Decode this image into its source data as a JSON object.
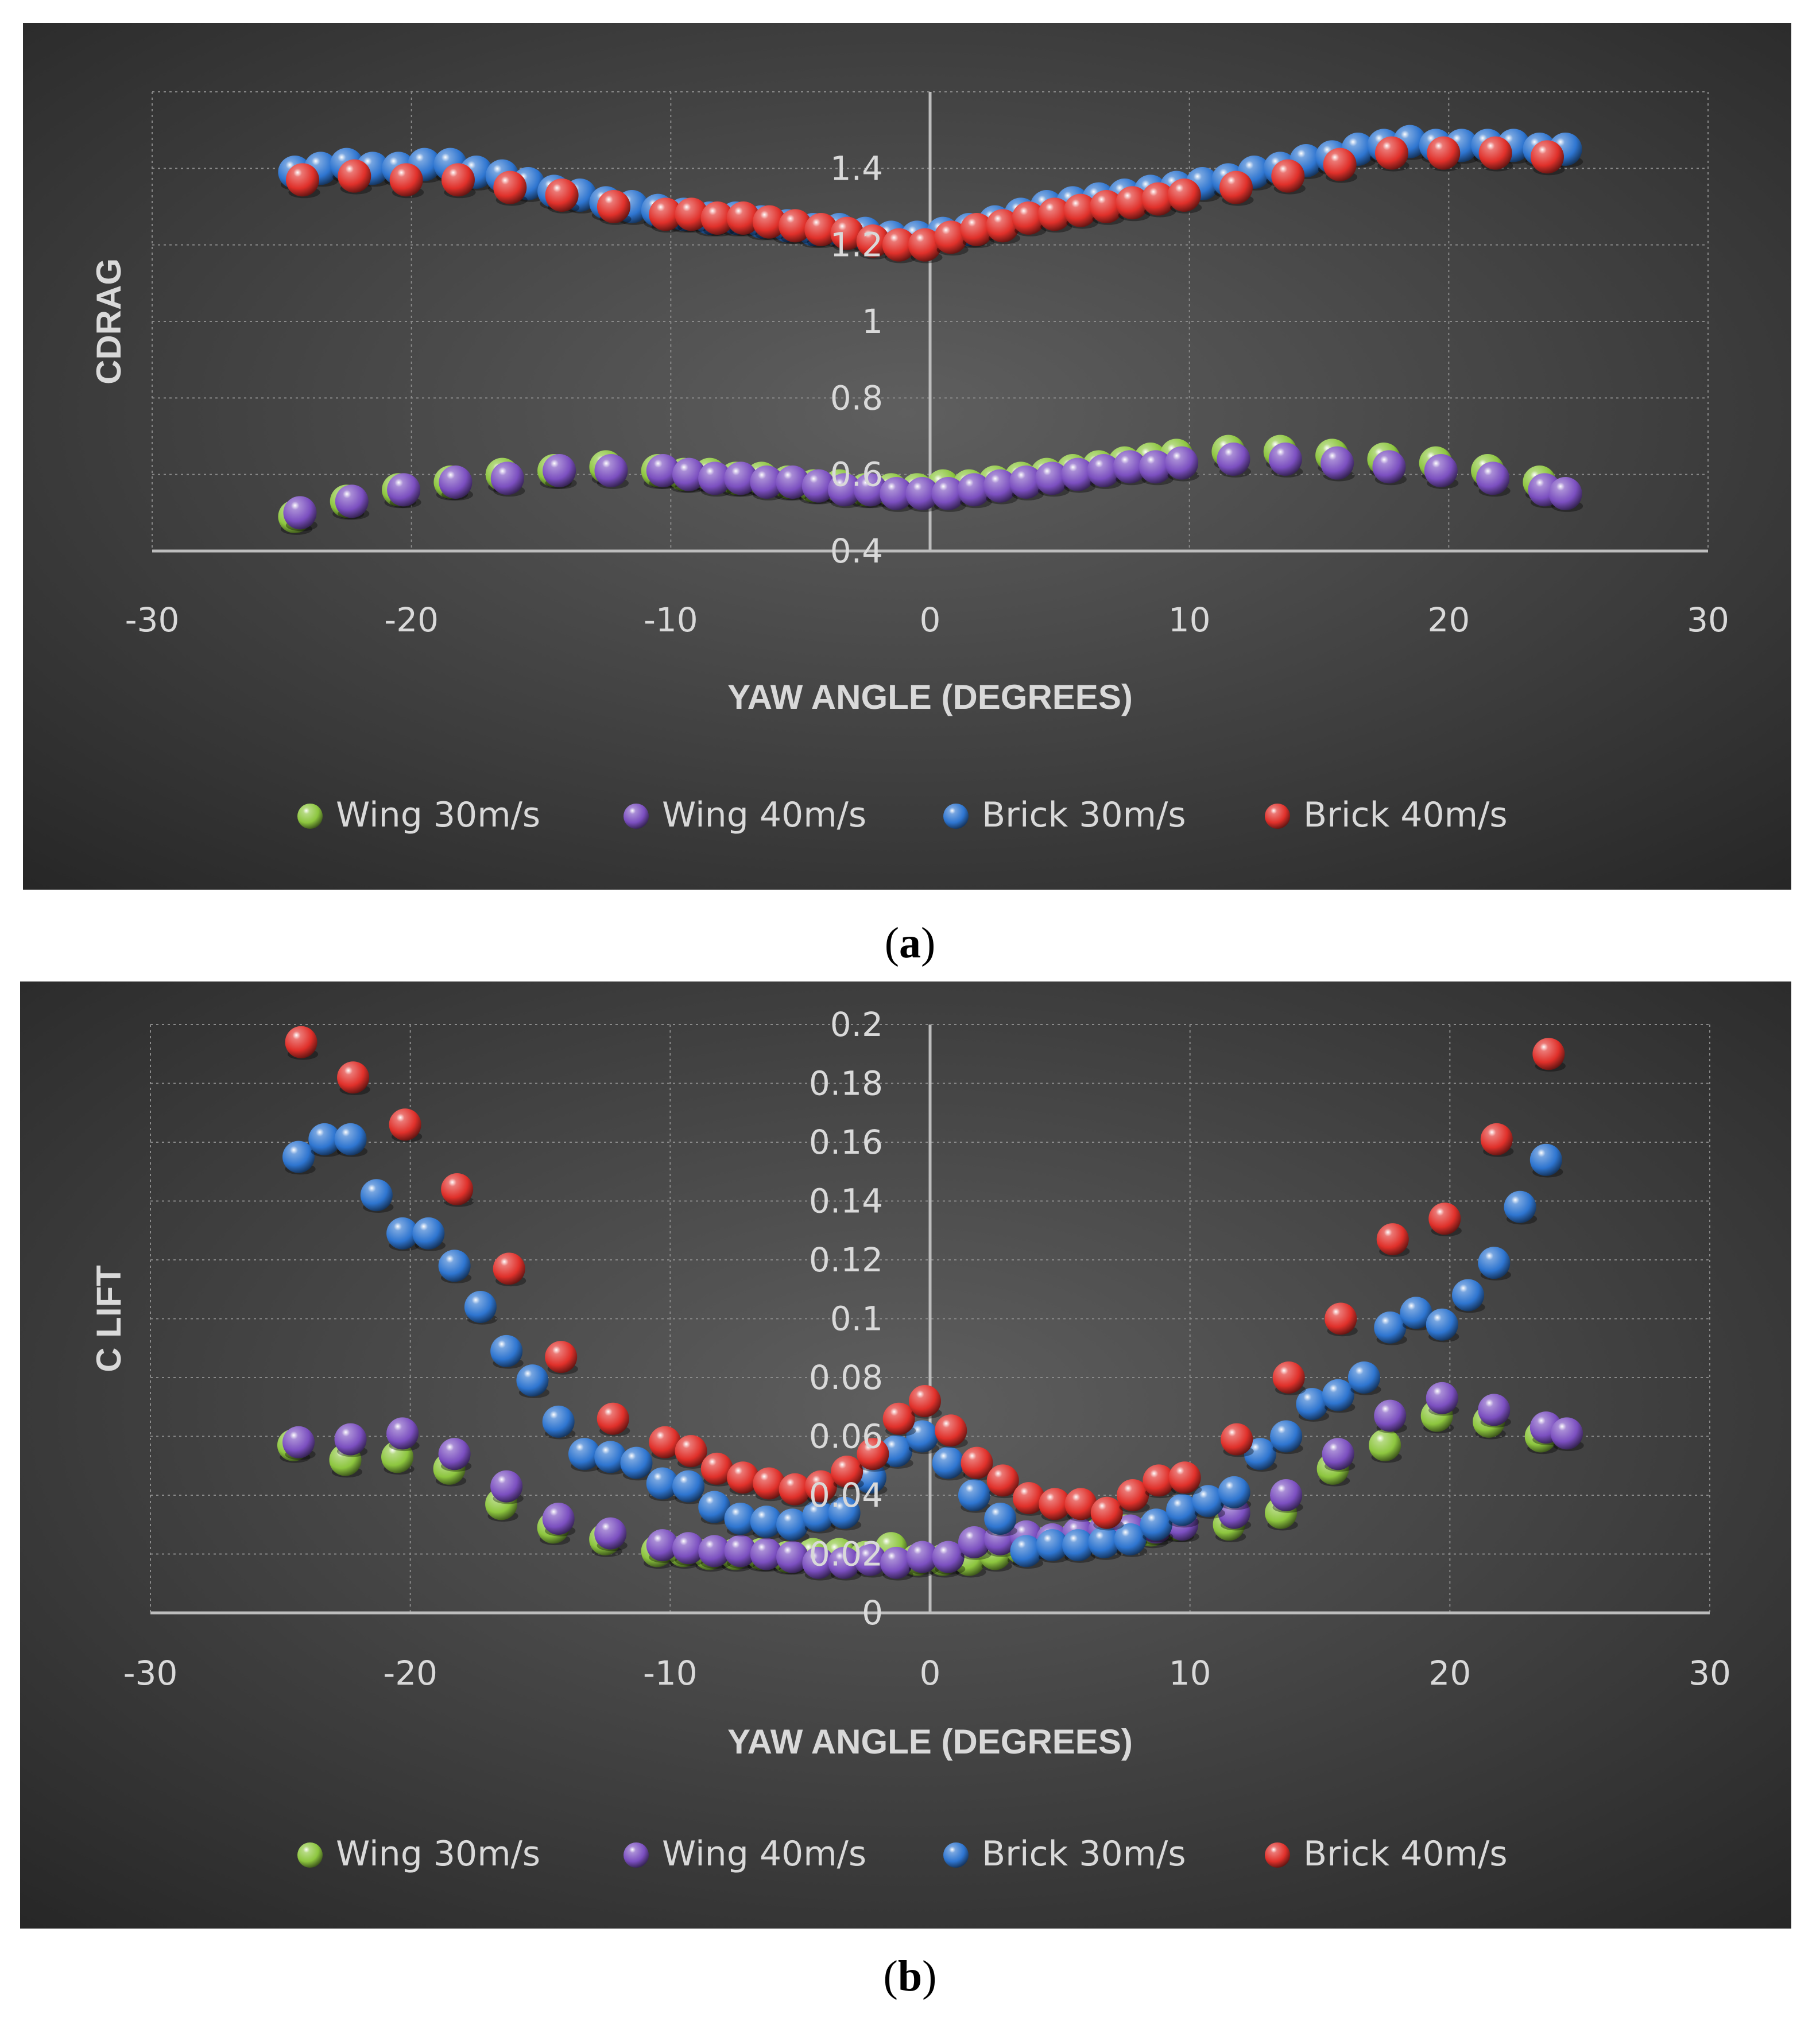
{
  "panels": [
    {
      "caption_letter": "a",
      "chart_data": {
        "type": "scatter",
        "title": "",
        "xlabel": "YAW ANGLE (DEGREES)",
        "ylabel": "CDRAG",
        "xlim": [
          -30,
          30
        ],
        "ylim": [
          0.4,
          1.6
        ],
        "x_ticks": [
          -30,
          -20,
          -10,
          0,
          10,
          20,
          30
        ],
        "y_ticks": [
          0.4,
          0.6,
          0.8,
          1,
          1.2,
          1.4
        ],
        "y_tick_labels": [
          "0.4",
          "0.6",
          "0.8",
          "1",
          "1.2",
          "1.4"
        ],
        "x_tick_labels": [
          "-30",
          "-20",
          "-10",
          "0",
          "10",
          "20",
          "30"
        ],
        "grid": true,
        "legend_position": "bottom",
        "series": [
          {
            "name": "Wing 30m/s",
            "color": "#8dc63f",
            "x": [
              -24.5,
              -22.5,
              -20.5,
              -18.5,
              -16.5,
              -14.5,
              -12.5,
              -10.5,
              -9.5,
              -8.5,
              -7.5,
              -6.5,
              -5.5,
              -4.5,
              -3.5,
              -2.5,
              -1.5,
              -0.5,
              0.5,
              1.5,
              2.5,
              3.5,
              4.5,
              5.5,
              6.5,
              7.5,
              8.5,
              9.5,
              11.5,
              13.5,
              15.5,
              17.5,
              19.5,
              21.5,
              23.5
            ],
            "y": [
              0.49,
              0.53,
              0.56,
              0.58,
              0.6,
              0.61,
              0.62,
              0.61,
              0.6,
              0.6,
              0.59,
              0.59,
              0.58,
              0.57,
              0.57,
              0.56,
              0.56,
              0.56,
              0.57,
              0.57,
              0.58,
              0.59,
              0.6,
              0.61,
              0.62,
              0.63,
              0.64,
              0.65,
              0.66,
              0.66,
              0.65,
              0.64,
              0.63,
              0.61,
              0.58
            ]
          },
          {
            "name": "Wing 40m/s",
            "color": "#7b4fc0",
            "x": [
              -24.3,
              -22.3,
              -20.3,
              -18.3,
              -16.3,
              -14.3,
              -12.3,
              -10.3,
              -9.3,
              -8.3,
              -7.3,
              -6.3,
              -5.3,
              -4.3,
              -3.3,
              -2.3,
              -1.3,
              -0.3,
              0.7,
              1.7,
              2.7,
              3.7,
              4.7,
              5.7,
              6.7,
              7.7,
              8.7,
              9.7,
              11.7,
              13.7,
              15.7,
              17.7,
              19.7,
              21.7,
              23.7,
              24.5
            ],
            "y": [
              0.5,
              0.53,
              0.56,
              0.58,
              0.59,
              0.61,
              0.61,
              0.61,
              0.6,
              0.59,
              0.59,
              0.58,
              0.58,
              0.57,
              0.56,
              0.56,
              0.55,
              0.55,
              0.55,
              0.56,
              0.57,
              0.58,
              0.59,
              0.6,
              0.61,
              0.62,
              0.62,
              0.63,
              0.64,
              0.64,
              0.63,
              0.62,
              0.61,
              0.59,
              0.56,
              0.55
            ]
          },
          {
            "name": "Brick 30m/s",
            "color": "#2e75d0",
            "x": [
              -24.5,
              -23.5,
              -22.5,
              -21.5,
              -20.5,
              -19.5,
              -18.5,
              -17.5,
              -16.5,
              -15.5,
              -14.5,
              -13.5,
              -12.5,
              -11.5,
              -10.5,
              -9.5,
              -8.5,
              -7.5,
              -6.5,
              -5.5,
              -4.5,
              -3.5,
              -2.5,
              -1.5,
              -0.5,
              0.5,
              1.5,
              2.5,
              3.5,
              4.5,
              5.5,
              6.5,
              7.5,
              8.5,
              9.5,
              10.5,
              11.5,
              12.5,
              13.5,
              14.5,
              15.5,
              16.5,
              17.5,
              18.5,
              19.5,
              20.5,
              21.5,
              22.5,
              23.5,
              24.5
            ],
            "y": [
              1.39,
              1.4,
              1.41,
              1.4,
              1.4,
              1.41,
              1.41,
              1.39,
              1.38,
              1.36,
              1.34,
              1.33,
              1.31,
              1.3,
              1.29,
              1.28,
              1.27,
              1.27,
              1.26,
              1.25,
              1.24,
              1.24,
              1.23,
              1.22,
              1.22,
              1.23,
              1.24,
              1.26,
              1.28,
              1.3,
              1.31,
              1.32,
              1.33,
              1.34,
              1.35,
              1.36,
              1.37,
              1.39,
              1.4,
              1.42,
              1.43,
              1.45,
              1.46,
              1.47,
              1.46,
              1.46,
              1.46,
              1.46,
              1.45,
              1.45
            ]
          },
          {
            "name": "Brick 40m/s",
            "color": "#e0302a",
            "x": [
              -24.2,
              -22.2,
              -20.2,
              -18.2,
              -16.2,
              -14.2,
              -12.2,
              -10.2,
              -9.2,
              -8.2,
              -7.2,
              -6.2,
              -5.2,
              -4.2,
              -3.2,
              -2.2,
              -1.2,
              -0.2,
              0.8,
              1.8,
              2.8,
              3.8,
              4.8,
              5.8,
              6.8,
              7.8,
              8.8,
              9.8,
              11.8,
              13.8,
              15.8,
              17.8,
              19.8,
              21.8,
              23.8
            ],
            "y": [
              1.37,
              1.38,
              1.37,
              1.37,
              1.35,
              1.33,
              1.3,
              1.28,
              1.28,
              1.27,
              1.27,
              1.26,
              1.25,
              1.24,
              1.23,
              1.21,
              1.2,
              1.2,
              1.22,
              1.24,
              1.25,
              1.27,
              1.28,
              1.29,
              1.3,
              1.31,
              1.32,
              1.33,
              1.35,
              1.38,
              1.41,
              1.44,
              1.44,
              1.44,
              1.43
            ]
          }
        ]
      }
    },
    {
      "caption_letter": "b",
      "chart_data": {
        "type": "scatter",
        "title": "",
        "xlabel": "YAW ANGLE (DEGREES)",
        "ylabel": "C LIFT",
        "xlim": [
          -30,
          30
        ],
        "ylim": [
          0,
          0.2
        ],
        "x_ticks": [
          -30,
          -20,
          -10,
          0,
          10,
          20,
          30
        ],
        "y_ticks": [
          0,
          0.02,
          0.04,
          0.06,
          0.08,
          0.1,
          0.12,
          0.14,
          0.16,
          0.18,
          0.2
        ],
        "y_tick_labels": [
          "0",
          "0.02",
          "0.04",
          "0.06",
          "0.08",
          "0.1",
          "0.12",
          "0.14",
          "0.16",
          "0.18",
          "0.2"
        ],
        "x_tick_labels": [
          "-30",
          "-20",
          "-10",
          "0",
          "10",
          "20",
          "30"
        ],
        "grid": true,
        "legend_position": "bottom",
        "series": [
          {
            "name": "Wing 30m/s",
            "color": "#8dc63f",
            "x": [
              -24.5,
              -22.5,
              -20.5,
              -18.5,
              -16.5,
              -14.5,
              -12.5,
              -10.5,
              -9.5,
              -8.5,
              -7.5,
              -6.5,
              -5.5,
              -4.5,
              -3.5,
              -2.5,
              -1.5,
              -0.5,
              0.5,
              1.5,
              2.5,
              3.5,
              4.5,
              5.5,
              6.5,
              7.5,
              8.5,
              9.5,
              11.5,
              13.5,
              15.5,
              17.5,
              19.5,
              21.5,
              23.5
            ],
            "y": [
              0.057,
              0.052,
              0.053,
              0.049,
              0.037,
              0.029,
              0.025,
              0.021,
              0.021,
              0.02,
              0.02,
              0.02,
              0.019,
              0.02,
              0.02,
              0.019,
              0.022,
              0.018,
              0.018,
              0.018,
              0.02,
              0.022,
              0.024,
              0.025,
              0.027,
              0.028,
              0.028,
              0.03,
              0.03,
              0.034,
              0.049,
              0.057,
              0.067,
              0.065,
              0.06
            ]
          },
          {
            "name": "Wing 40m/s",
            "color": "#7b4fc0",
            "x": [
              -24.3,
              -22.3,
              -20.3,
              -18.3,
              -16.3,
              -14.3,
              -12.3,
              -10.3,
              -9.3,
              -8.3,
              -7.3,
              -6.3,
              -5.3,
              -4.3,
              -3.3,
              -2.3,
              -1.3,
              -0.3,
              0.7,
              1.7,
              2.7,
              3.7,
              4.7,
              5.7,
              6.7,
              7.7,
              8.7,
              9.7,
              11.7,
              13.7,
              15.7,
              17.7,
              19.7,
              21.7,
              23.7,
              24.5
            ],
            "y": [
              0.058,
              0.059,
              0.061,
              0.054,
              0.043,
              0.032,
              0.027,
              0.023,
              0.022,
              0.021,
              0.021,
              0.02,
              0.019,
              0.017,
              0.017,
              0.018,
              0.017,
              0.019,
              0.019,
              0.024,
              0.025,
              0.026,
              0.025,
              0.027,
              0.028,
              0.028,
              0.029,
              0.03,
              0.034,
              0.04,
              0.054,
              0.067,
              0.073,
              0.069,
              0.063,
              0.061
            ]
          },
          {
            "name": "Brick 30m/s",
            "color": "#2e75d0",
            "x": [
              -24.3,
              -23.3,
              -22.3,
              -21.3,
              -20.3,
              -19.3,
              -18.3,
              -17.3,
              -16.3,
              -15.3,
              -14.3,
              -13.3,
              -12.3,
              -11.3,
              -10.3,
              -9.3,
              -8.3,
              -7.3,
              -6.3,
              -5.3,
              -4.3,
              -3.3,
              -2.3,
              -1.3,
              -0.3,
              0.7,
              1.7,
              2.7,
              3.7,
              4.7,
              5.7,
              6.7,
              7.7,
              8.7,
              9.7,
              10.7,
              11.7,
              12.7,
              13.7,
              14.7,
              15.7,
              16.7,
              17.7,
              18.7,
              19.7,
              20.7,
              21.7,
              22.7,
              23.7
            ],
            "y": [
              0.155,
              0.161,
              0.161,
              0.142,
              0.129,
              0.129,
              0.118,
              0.104,
              0.089,
              0.079,
              0.065,
              0.054,
              0.053,
              0.051,
              0.044,
              0.043,
              0.036,
              0.032,
              0.031,
              0.03,
              0.033,
              0.034,
              0.046,
              0.055,
              0.06,
              0.051,
              0.04,
              0.032,
              0.021,
              0.023,
              0.023,
              0.024,
              0.025,
              0.03,
              0.035,
              0.038,
              0.041,
              0.054,
              0.06,
              0.071,
              0.074,
              0.08,
              0.097,
              0.102,
              0.098,
              0.108,
              0.119,
              0.138,
              0.154
            ]
          },
          {
            "name": "Brick 40m/s",
            "color": "#e0302a",
            "x": [
              -24.2,
              -22.2,
              -20.2,
              -18.2,
              -16.2,
              -14.2,
              -12.2,
              -10.2,
              -9.2,
              -8.2,
              -7.2,
              -6.2,
              -5.2,
              -4.2,
              -3.2,
              -2.2,
              -1.2,
              -0.2,
              0.8,
              1.8,
              2.8,
              3.8,
              4.8,
              5.8,
              6.8,
              7.8,
              8.8,
              9.8,
              11.8,
              13.8,
              15.8,
              17.8,
              19.8,
              21.8,
              23.8
            ],
            "y": [
              0.194,
              0.182,
              0.166,
              0.144,
              0.117,
              0.087,
              0.066,
              0.058,
              0.055,
              0.049,
              0.046,
              0.044,
              0.042,
              0.043,
              0.048,
              0.054,
              0.066,
              0.072,
              0.062,
              0.051,
              0.045,
              0.039,
              0.037,
              0.037,
              0.034,
              0.04,
              0.045,
              0.046,
              0.059,
              0.08,
              0.1,
              0.127,
              0.134,
              0.161,
              0.19
            ]
          }
        ]
      }
    }
  ]
}
